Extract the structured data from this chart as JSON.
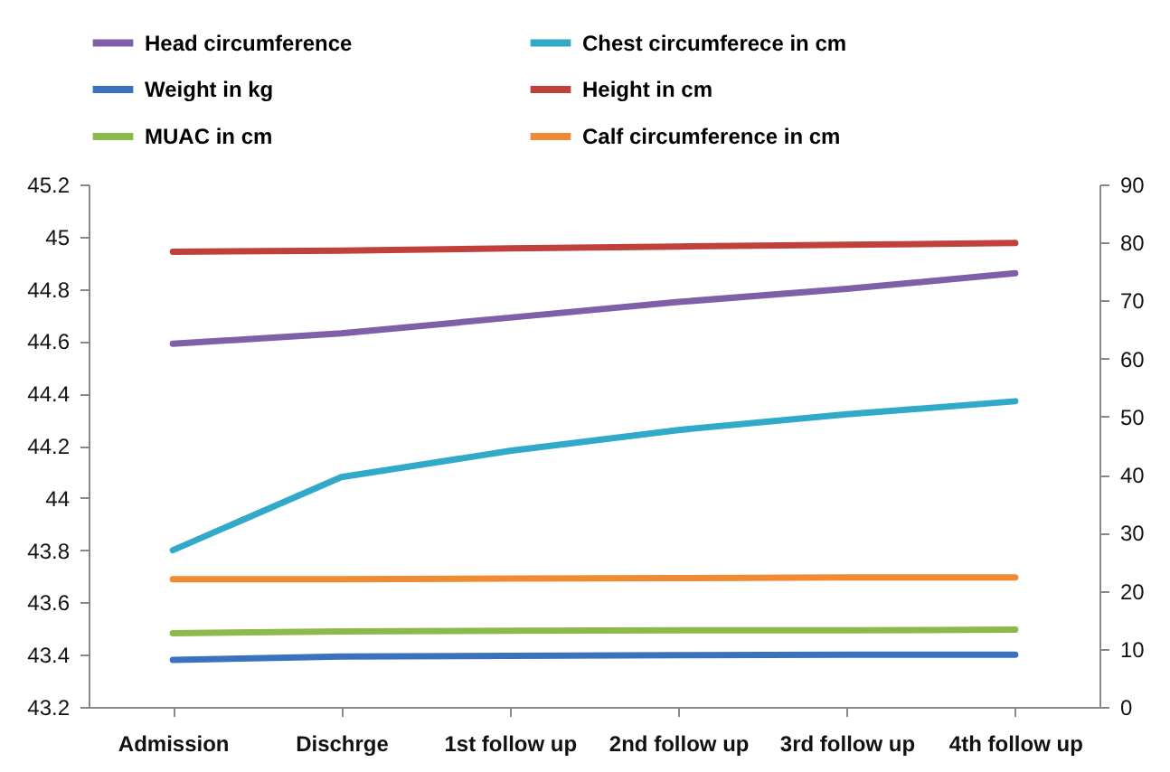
{
  "chart_data": {
    "type": "line",
    "categories": [
      "Admission",
      "Dischrge",
      "1st follow up",
      "2nd follow up",
      "3rd follow up",
      "4th follow up"
    ],
    "series": [
      {
        "name": "Head circumference",
        "color": "#7f5fa8",
        "values": [
          44.59,
          44.63,
          44.69,
          44.75,
          44.8,
          44.86
        ]
      },
      {
        "name": "Chest circumferece in cm",
        "color": "#31a9c8",
        "values": [
          43.8,
          44.08,
          44.18,
          44.26,
          44.32,
          44.37
        ]
      },
      {
        "name": "Weight in kg",
        "color": "#3a72c0",
        "axis": "y2",
        "values": [
          8.1,
          8.7,
          8.8,
          8.9,
          9.0,
          9.0
        ]
      },
      {
        "name": "Height in cm",
        "color": "#c0403b",
        "axis": "y2",
        "values": [
          78.4,
          78.6,
          79.0,
          79.3,
          79.6,
          79.9
        ]
      },
      {
        "name": "MUAC in cm",
        "color": "#8cba4a",
        "axis": "y2",
        "values": [
          12.7,
          13.0,
          13.1,
          13.2,
          13.2,
          13.3
        ]
      },
      {
        "name": "Calf circumference in cm",
        "color": "#f08a33",
        "axis": "y2",
        "values": [
          22.0,
          22.0,
          22.1,
          22.2,
          22.3,
          22.3
        ]
      }
    ],
    "ylim": [
      43.2,
      45.2
    ],
    "yticks": [
      43.2,
      43.4,
      43.6,
      43.8,
      44,
      44.2,
      44.4,
      44.6,
      44.8,
      45,
      45.2
    ],
    "y2lim": [
      0,
      90
    ],
    "y2ticks": [
      0,
      10,
      20,
      30,
      40,
      50,
      60,
      70,
      80,
      90
    ],
    "grid": false,
    "legend": "top",
    "marker": "none",
    "line_style": "solid"
  }
}
